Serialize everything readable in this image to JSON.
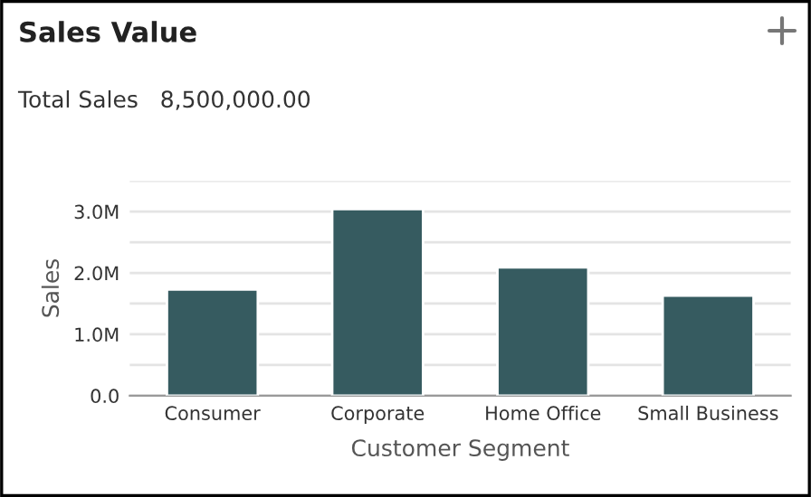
{
  "chart_data": {
    "type": "bar",
    "title": "Sales Value",
    "annotations": [
      "Total Sales   8,500,000.00"
    ],
    "categories": [
      "Consumer",
      "Corporate",
      "Home Office",
      "Small Business"
    ],
    "values": [
      1730000,
      3040000,
      2090000,
      1630000
    ],
    "color": "#365b60",
    "xlabel": "Customer Segment",
    "ylabel": "Sales",
    "ylim": [
      0,
      3500000
    ],
    "yticks": [
      {
        "value": 0,
        "label": "0.0"
      },
      {
        "value": 500000,
        "label": null
      },
      {
        "value": 1000000,
        "label": "1.0M"
      },
      {
        "value": 1500000,
        "label": null
      },
      {
        "value": 2000000,
        "label": "2.0M"
      },
      {
        "value": 2500000,
        "label": null
      },
      {
        "value": 3000000,
        "label": "3.0M"
      },
      {
        "value": 3500000,
        "label": null
      }
    ],
    "grid": "y"
  }
}
